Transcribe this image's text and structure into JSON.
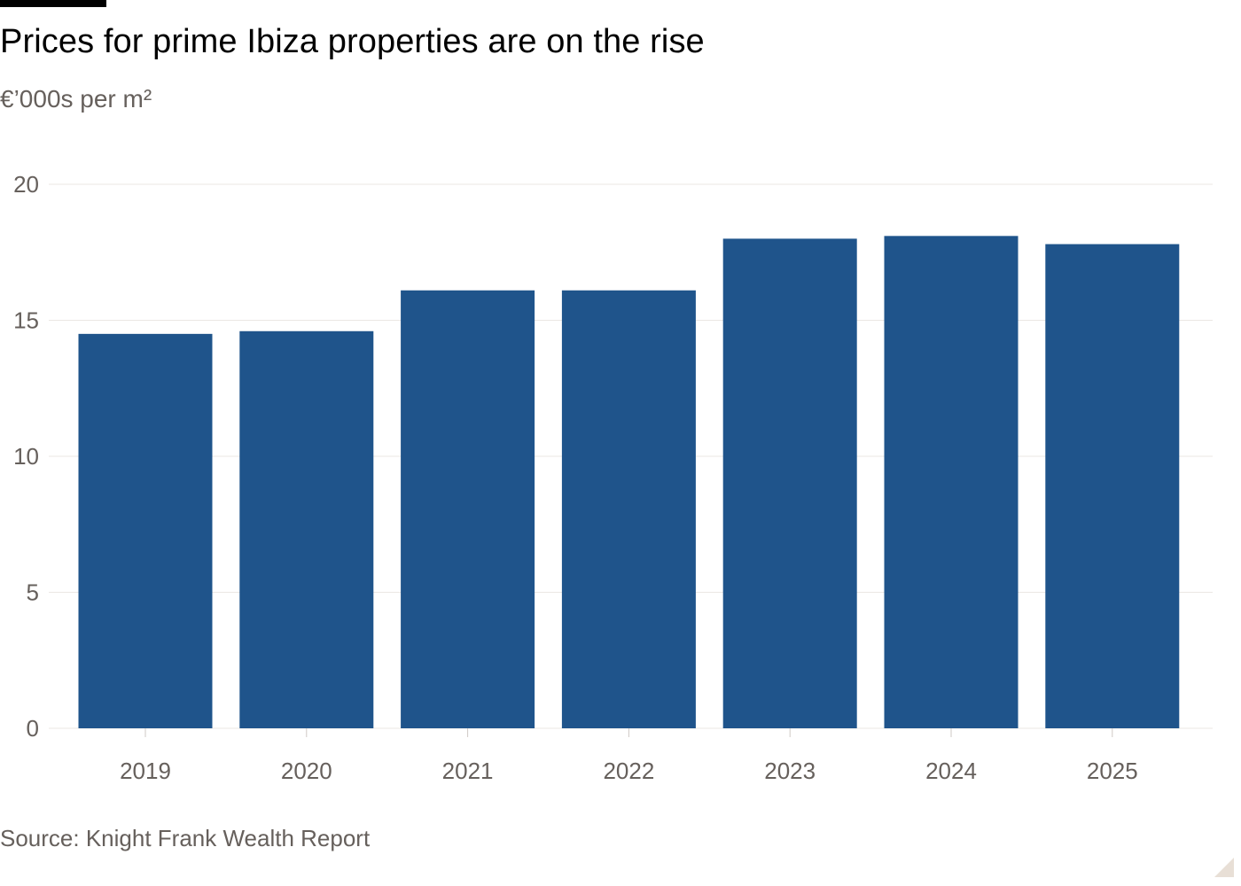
{
  "title": "Prices for prime Ibiza properties are on the rise",
  "subtitle": "€’000s per m²",
  "source": "Source: Knight Frank Wealth Report",
  "colors": {
    "bar": "#1f548b",
    "grid": "#ebe7e3",
    "axis_text": "#66605c",
    "title": "#000000"
  },
  "chart_data": {
    "type": "bar",
    "title": "Prices for prime Ibiza properties are on the rise",
    "ylabel": "€’000s per m²",
    "xlabel": "",
    "categories": [
      "2019",
      "2020",
      "2021",
      "2022",
      "2023",
      "2024",
      "2025"
    ],
    "values": [
      14.5,
      14.6,
      16.1,
      16.1,
      18.0,
      18.1,
      17.8
    ],
    "ylim": [
      0,
      20
    ],
    "yticks": [
      0,
      5,
      10,
      15,
      20
    ],
    "grid": true,
    "legend": "none"
  }
}
